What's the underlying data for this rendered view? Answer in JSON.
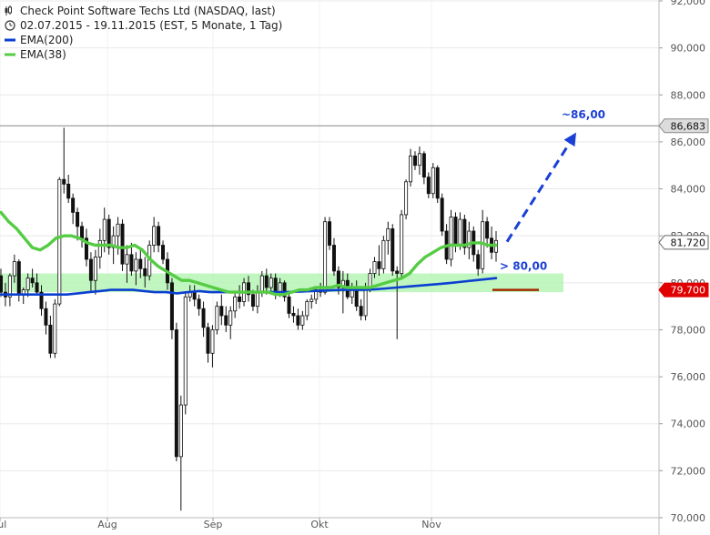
{
  "chart_data": {
    "type": "candlestick",
    "title": "Check Point Software Techs Ltd (NASDAQ, last)",
    "subtitle": "02.07.2015 - 19.11.2015 (EST, 5 Monate, 1 Tag)",
    "legend": [
      {
        "name": "EMA(200)",
        "color": "#0b3fd0"
      },
      {
        "name": "EMA(38)",
        "color": "#55cc44"
      }
    ],
    "ylim": [
      70,
      92
    ],
    "y_ticks": [
      "70,000",
      "72,000",
      "74,000",
      "76,000",
      "78,000",
      "80,000",
      "82,000",
      "84,000",
      "86,000",
      "88,000",
      "90,000",
      "92,000"
    ],
    "x_ticks": [
      "Jul",
      "Aug",
      "Sep",
      "Okt",
      "Nov"
    ],
    "price_tags": [
      {
        "label": "86,683",
        "value": 86.683,
        "style": "gray"
      },
      {
        "label": "81,720",
        "value": 81.72,
        "style": "white"
      },
      {
        "label": "79,700",
        "value": 79.7,
        "style": "red"
      }
    ],
    "annotations": [
      {
        "text": "~86,00",
        "value": 86.0
      },
      {
        "text": "> 80,00",
        "value": 80.0
      }
    ],
    "resistance_line": 86.683,
    "support_zone": [
      79.6,
      80.4
    ],
    "support_level": 79.7,
    "target": 86.0,
    "candles_ohlc": [
      [
        80.3,
        80.6,
        79.4,
        79.6
      ],
      [
        79.6,
        80.0,
        79.0,
        79.4
      ],
      [
        79.4,
        80.4,
        79.0,
        80.3
      ],
      [
        80.3,
        81.2,
        80.0,
        80.9
      ],
      [
        80.9,
        81.0,
        79.2,
        79.5
      ],
      [
        79.5,
        79.8,
        79.1,
        79.7
      ],
      [
        79.7,
        80.4,
        79.4,
        80.2
      ],
      [
        80.2,
        80.6,
        79.8,
        80.0
      ],
      [
        80.0,
        80.4,
        79.5,
        79.6
      ],
      [
        79.6,
        79.9,
        78.6,
        78.9
      ],
      [
        78.9,
        79.2,
        77.8,
        78.2
      ],
      [
        78.2,
        78.6,
        76.8,
        77.0
      ],
      [
        77.0,
        79.3,
        76.8,
        79.1
      ],
      [
        79.1,
        84.5,
        79.0,
        84.4
      ],
      [
        84.4,
        86.6,
        83.8,
        84.2
      ],
      [
        84.2,
        84.6,
        83.4,
        83.6
      ],
      [
        83.6,
        83.8,
        82.5,
        83.0
      ],
      [
        83.0,
        83.2,
        81.8,
        82.4
      ],
      [
        82.4,
        82.6,
        81.5,
        81.9
      ],
      [
        81.9,
        82.3,
        80.7,
        81.0
      ],
      [
        81.0,
        81.3,
        79.6,
        80.1
      ],
      [
        80.1,
        81.4,
        79.5,
        81.1
      ],
      [
        81.1,
        82.3,
        80.6,
        81.8
      ],
      [
        81.8,
        83.2,
        81.3,
        82.7
      ],
      [
        82.7,
        82.9,
        81.2,
        81.5
      ],
      [
        81.5,
        82.4,
        80.8,
        82.0
      ],
      [
        82.0,
        82.8,
        81.2,
        82.5
      ],
      [
        82.5,
        82.7,
        80.5,
        80.8
      ],
      [
        80.8,
        81.6,
        80.0,
        81.2
      ],
      [
        81.2,
        81.7,
        80.3,
        80.5
      ],
      [
        80.5,
        81.3,
        79.9,
        81.0
      ],
      [
        81.0,
        81.4,
        80.2,
        80.6
      ],
      [
        80.6,
        81.1,
        79.8,
        80.3
      ],
      [
        80.3,
        81.8,
        80.1,
        81.6
      ],
      [
        81.6,
        82.8,
        81.3,
        82.4
      ],
      [
        82.4,
        82.6,
        81.3,
        81.6
      ],
      [
        81.6,
        81.8,
        80.8,
        81.0
      ],
      [
        81.0,
        81.3,
        79.7,
        80.0
      ],
      [
        80.0,
        80.2,
        77.6,
        78.0
      ],
      [
        78.0,
        78.3,
        72.4,
        72.6
      ],
      [
        72.6,
        75.2,
        70.3,
        74.8
      ],
      [
        74.8,
        79.6,
        74.4,
        79.4
      ],
      [
        79.4,
        79.9,
        79.2,
        79.6
      ],
      [
        79.6,
        79.9,
        79.0,
        79.3
      ],
      [
        79.3,
        79.5,
        78.6,
        78.9
      ],
      [
        78.9,
        79.2,
        77.7,
        78.1
      ],
      [
        78.1,
        78.3,
        76.6,
        77.0
      ],
      [
        77.0,
        78.2,
        76.4,
        78.0
      ],
      [
        78.0,
        79.2,
        77.8,
        79.0
      ],
      [
        79.0,
        79.5,
        78.2,
        78.6
      ],
      [
        78.6,
        79.0,
        77.9,
        78.2
      ],
      [
        78.2,
        79.0,
        77.6,
        78.8
      ],
      [
        78.8,
        79.6,
        78.5,
        79.4
      ],
      [
        79.4,
        79.9,
        78.9,
        79.2
      ],
      [
        79.2,
        80.2,
        79.0,
        80.0
      ],
      [
        80.0,
        80.3,
        79.2,
        79.5
      ],
      [
        79.5,
        79.7,
        78.8,
        79.0
      ],
      [
        79.0,
        79.9,
        78.7,
        79.6
      ],
      [
        79.6,
        80.5,
        79.4,
        80.3
      ],
      [
        80.3,
        80.6,
        79.5,
        79.8
      ],
      [
        79.8,
        80.4,
        79.6,
        80.2
      ],
      [
        80.2,
        80.4,
        79.3,
        79.6
      ],
      [
        79.6,
        80.2,
        79.4,
        80.0
      ],
      [
        80.0,
        80.1,
        79.2,
        79.4
      ],
      [
        79.4,
        79.6,
        78.5,
        78.7
      ],
      [
        78.7,
        79.0,
        78.3,
        78.6
      ],
      [
        78.6,
        78.9,
        78.0,
        78.2
      ],
      [
        78.2,
        78.8,
        78.0,
        78.6
      ],
      [
        78.6,
        79.3,
        78.4,
        79.2
      ],
      [
        79.2,
        79.5,
        78.9,
        79.3
      ],
      [
        79.3,
        79.8,
        79.1,
        79.7
      ],
      [
        79.7,
        80.0,
        79.4,
        79.6
      ],
      [
        79.6,
        82.8,
        79.5,
        82.6
      ],
      [
        82.6,
        82.8,
        81.4,
        81.6
      ],
      [
        81.6,
        81.9,
        80.3,
        80.5
      ],
      [
        80.5,
        80.7,
        79.5,
        79.8
      ],
      [
        79.8,
        80.5,
        78.7,
        80.1
      ],
      [
        80.1,
        80.4,
        79.3,
        79.4
      ],
      [
        79.4,
        80.0,
        79.1,
        79.8
      ],
      [
        79.8,
        80.1,
        78.8,
        79.0
      ],
      [
        79.0,
        79.3,
        78.4,
        78.6
      ],
      [
        78.6,
        80.0,
        78.4,
        79.8
      ],
      [
        79.8,
        80.6,
        79.6,
        80.4
      ],
      [
        80.4,
        81.1,
        80.2,
        80.9
      ],
      [
        80.9,
        81.6,
        80.3,
        80.6
      ],
      [
        80.6,
        82.0,
        80.4,
        81.8
      ],
      [
        81.8,
        82.6,
        81.2,
        82.3
      ],
      [
        82.3,
        82.5,
        80.3,
        80.5
      ],
      [
        80.5,
        80.7,
        77.6,
        80.4
      ],
      [
        80.4,
        83.1,
        80.2,
        82.9
      ],
      [
        82.9,
        84.4,
        82.7,
        84.3
      ],
      [
        84.3,
        85.7,
        84.1,
        85.4
      ],
      [
        85.4,
        85.6,
        84.8,
        85.0
      ],
      [
        85.0,
        85.8,
        84.6,
        85.5
      ],
      [
        85.5,
        85.6,
        84.2,
        84.5
      ],
      [
        84.5,
        84.7,
        83.6,
        83.8
      ],
      [
        83.8,
        85.1,
        83.6,
        84.9
      ],
      [
        84.9,
        85.0,
        83.4,
        83.6
      ],
      [
        83.6,
        83.8,
        82.0,
        82.2
      ],
      [
        82.2,
        82.5,
        80.8,
        81.0
      ],
      [
        81.0,
        83.1,
        80.7,
        82.8
      ],
      [
        82.8,
        83.0,
        81.3,
        81.6
      ],
      [
        81.6,
        83.0,
        81.4,
        82.7
      ],
      [
        82.7,
        82.9,
        81.2,
        81.5
      ],
      [
        81.5,
        82.6,
        81.0,
        82.2
      ],
      [
        82.2,
        82.4,
        80.9,
        81.2
      ],
      [
        81.2,
        81.4,
        80.3,
        80.6
      ],
      [
        80.6,
        83.1,
        80.4,
        82.6
      ],
      [
        82.6,
        82.8,
        81.5,
        81.9
      ],
      [
        81.9,
        82.4,
        81.0,
        81.3
      ],
      [
        81.3,
        82.2,
        80.9,
        81.8
      ]
    ],
    "ema38": [
      83.0,
      82.6,
      82.3,
      81.9,
      81.5,
      81.4,
      81.6,
      81.9,
      82.0,
      82.0,
      81.9,
      81.7,
      81.6,
      81.6,
      81.6,
      81.5,
      81.5,
      81.6,
      81.4,
      81.0,
      80.7,
      80.5,
      80.3,
      80.1,
      80.1,
      80.0,
      79.9,
      79.8,
      79.7,
      79.6,
      79.6,
      79.6,
      79.6,
      79.6,
      79.6,
      79.5,
      79.5,
      79.6,
      79.7,
      79.7,
      79.8,
      79.8,
      79.8,
      79.9,
      79.8,
      79.8,
      79.8,
      79.8,
      79.9,
      80.0,
      80.1,
      80.2,
      80.4,
      80.8,
      81.1,
      81.3,
      81.5,
      81.6,
      81.6,
      81.6,
      81.7,
      81.7,
      81.6,
      81.6
    ],
    "ema200": [
      79.5,
      79.5,
      79.5,
      79.5,
      79.5,
      79.5,
      79.5,
      79.55,
      79.6,
      79.65,
      79.7,
      79.7,
      79.7,
      79.65,
      79.6,
      79.6,
      79.55,
      79.6,
      79.65,
      79.6,
      79.6,
      79.6,
      79.6,
      79.6,
      79.6,
      79.6,
      79.6,
      79.62,
      79.64,
      79.66,
      79.68,
      79.7,
      79.7,
      79.7,
      79.72,
      79.76,
      79.8,
      79.84,
      79.88,
      79.92,
      79.96,
      80.0,
      80.05,
      80.1,
      80.15,
      80.2
    ]
  }
}
